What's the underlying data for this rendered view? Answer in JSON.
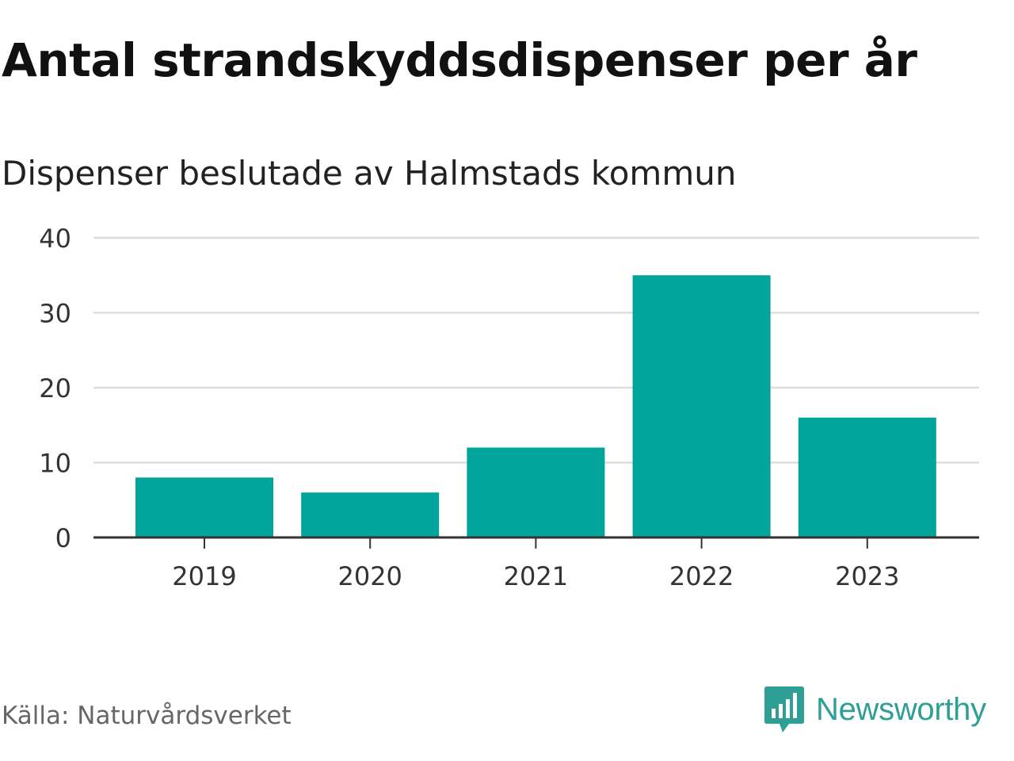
{
  "title": "Antal strandskyddsdispenser per år",
  "subtitle": "Dispenser beslutade av Halmstads kommun",
  "source": "Källa: Naturvårdsverket",
  "brand": {
    "name": "Newsworthy",
    "color": "#2e9f94"
  },
  "chart_data": {
    "type": "bar",
    "title": "Antal strandskyddsdispenser per år",
    "subtitle": "Dispenser beslutade av Halmstads kommun",
    "categories": [
      "2019",
      "2020",
      "2021",
      "2022",
      "2023"
    ],
    "values": [
      8,
      6,
      12,
      35,
      16
    ],
    "xlabel": "",
    "ylabel": "",
    "ylim": [
      0,
      40
    ],
    "yticks": [
      0,
      10,
      20,
      30,
      40
    ],
    "grid": true,
    "bar_color": "#00a499",
    "legend": "none"
  }
}
